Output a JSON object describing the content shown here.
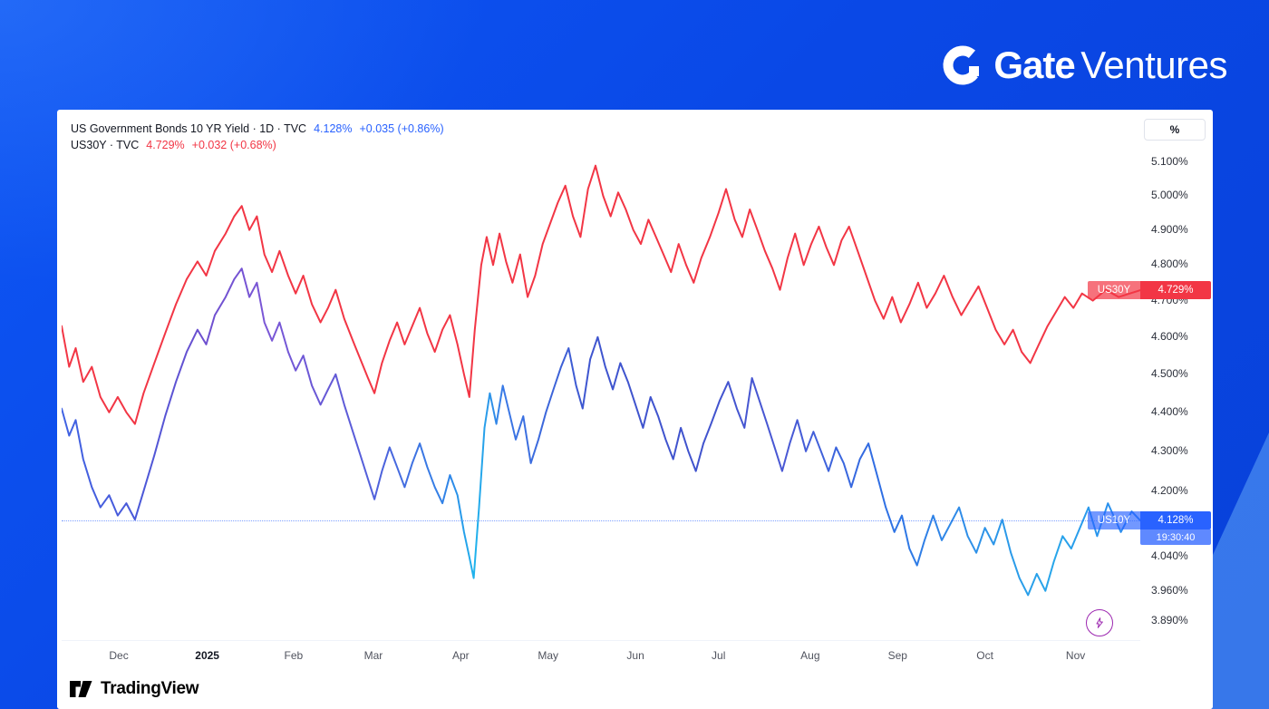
{
  "branding": {
    "bold": "Gate",
    "light": "Ventures"
  },
  "chart": {
    "legend": [
      {
        "title": "US Government Bonds 10 YR Yield · 1D · TVC",
        "value": "4.128%",
        "change": "+0.035 (+0.86%)",
        "color": "#2962ff"
      },
      {
        "title": "US30Y · TVC",
        "value": "4.729%",
        "change": "+0.032 (+0.68%)",
        "color": "#f23645"
      }
    ],
    "price_axis": {
      "unit": "%"
    }
  },
  "badges": {
    "us30y": {
      "name": "US30Y",
      "value": "4.729%",
      "v": 4.729,
      "color": "#f23645"
    },
    "us10y": {
      "name": "US10Y",
      "value": "4.128%",
      "countdown": "19:30:40",
      "v": 4.128,
      "color": "#2962ff"
    }
  },
  "attribution": {
    "text": "TradingView"
  },
  "chart_data": {
    "type": "line",
    "title": "US Government Bonds 10 YR Yield (US10Y) vs US30Y, 1D, TVC",
    "grid": false,
    "legend_position": "top-left",
    "last_price_line": 4.128,
    "x_axis": {
      "labels": [
        "Dec",
        "2025",
        "Feb",
        "Mar",
        "Apr",
        "May",
        "Jun",
        "Jul",
        "Aug",
        "Sep",
        "Oct",
        "Nov"
      ],
      "fracs": [
        0.053,
        0.135,
        0.215,
        0.289,
        0.37,
        0.451,
        0.532,
        0.609,
        0.694,
        0.775,
        0.856,
        0.94
      ]
    },
    "y_axis": {
      "scale": "log",
      "unit": "%",
      "tick_labels": [
        "5.100%",
        "5.000%",
        "4.900%",
        "4.800%",
        "4.700%",
        "4.600%",
        "4.500%",
        "4.400%",
        "4.300%",
        "4.200%",
        "4.040%",
        "3.960%",
        "3.890%"
      ]
    },
    "series": [
      {
        "name": "US30Y",
        "color": "#f23645",
        "last_value": 4.729,
        "points": [
          [
            0.0,
            4.63
          ],
          [
            0.007,
            4.52
          ],
          [
            0.013,
            4.57
          ],
          [
            0.02,
            4.48
          ],
          [
            0.028,
            4.52
          ],
          [
            0.036,
            4.44
          ],
          [
            0.044,
            4.4
          ],
          [
            0.052,
            4.44
          ],
          [
            0.06,
            4.4
          ],
          [
            0.068,
            4.37
          ],
          [
            0.076,
            4.45
          ],
          [
            0.086,
            4.53
          ],
          [
            0.096,
            4.61
          ],
          [
            0.106,
            4.69
          ],
          [
            0.116,
            4.76
          ],
          [
            0.126,
            4.81
          ],
          [
            0.134,
            4.77
          ],
          [
            0.142,
            4.84
          ],
          [
            0.152,
            4.89
          ],
          [
            0.16,
            4.94
          ],
          [
            0.167,
            4.97
          ],
          [
            0.174,
            4.9
          ],
          [
            0.181,
            4.94
          ],
          [
            0.188,
            4.83
          ],
          [
            0.195,
            4.78
          ],
          [
            0.202,
            4.84
          ],
          [
            0.21,
            4.77
          ],
          [
            0.217,
            4.72
          ],
          [
            0.224,
            4.77
          ],
          [
            0.232,
            4.69
          ],
          [
            0.24,
            4.64
          ],
          [
            0.247,
            4.68
          ],
          [
            0.254,
            4.73
          ],
          [
            0.262,
            4.65
          ],
          [
            0.27,
            4.59
          ],
          [
            0.277,
            4.54
          ],
          [
            0.284,
            4.49
          ],
          [
            0.29,
            4.45
          ],
          [
            0.297,
            4.53
          ],
          [
            0.304,
            4.59
          ],
          [
            0.311,
            4.64
          ],
          [
            0.318,
            4.58
          ],
          [
            0.325,
            4.63
          ],
          [
            0.332,
            4.68
          ],
          [
            0.339,
            4.61
          ],
          [
            0.346,
            4.56
          ],
          [
            0.353,
            4.62
          ],
          [
            0.36,
            4.66
          ],
          [
            0.367,
            4.58
          ],
          [
            0.373,
            4.5
          ],
          [
            0.378,
            4.44
          ],
          [
            0.383,
            4.62
          ],
          [
            0.389,
            4.8
          ],
          [
            0.394,
            4.88
          ],
          [
            0.4,
            4.8
          ],
          [
            0.406,
            4.89
          ],
          [
            0.412,
            4.81
          ],
          [
            0.418,
            4.75
          ],
          [
            0.425,
            4.83
          ],
          [
            0.432,
            4.71
          ],
          [
            0.439,
            4.77
          ],
          [
            0.446,
            4.86
          ],
          [
            0.453,
            4.92
          ],
          [
            0.46,
            4.98
          ],
          [
            0.467,
            5.03
          ],
          [
            0.474,
            4.94
          ],
          [
            0.481,
            4.88
          ],
          [
            0.488,
            5.02
          ],
          [
            0.495,
            5.09
          ],
          [
            0.502,
            5.0
          ],
          [
            0.509,
            4.94
          ],
          [
            0.516,
            5.01
          ],
          [
            0.523,
            4.96
          ],
          [
            0.53,
            4.9
          ],
          [
            0.537,
            4.86
          ],
          [
            0.544,
            4.93
          ],
          [
            0.551,
            4.88
          ],
          [
            0.558,
            4.83
          ],
          [
            0.565,
            4.78
          ],
          [
            0.572,
            4.86
          ],
          [
            0.579,
            4.8
          ],
          [
            0.586,
            4.75
          ],
          [
            0.593,
            4.82
          ],
          [
            0.601,
            4.88
          ],
          [
            0.609,
            4.95
          ],
          [
            0.616,
            5.02
          ],
          [
            0.624,
            4.93
          ],
          [
            0.631,
            4.88
          ],
          [
            0.638,
            4.96
          ],
          [
            0.645,
            4.9
          ],
          [
            0.652,
            4.84
          ],
          [
            0.659,
            4.79
          ],
          [
            0.666,
            4.73
          ],
          [
            0.673,
            4.82
          ],
          [
            0.68,
            4.89
          ],
          [
            0.688,
            4.8
          ],
          [
            0.695,
            4.86
          ],
          [
            0.702,
            4.91
          ],
          [
            0.709,
            4.85
          ],
          [
            0.716,
            4.8
          ],
          [
            0.723,
            4.87
          ],
          [
            0.73,
            4.91
          ],
          [
            0.738,
            4.84
          ],
          [
            0.746,
            4.77
          ],
          [
            0.754,
            4.7
          ],
          [
            0.762,
            4.65
          ],
          [
            0.77,
            4.71
          ],
          [
            0.778,
            4.64
          ],
          [
            0.786,
            4.69
          ],
          [
            0.794,
            4.75
          ],
          [
            0.802,
            4.68
          ],
          [
            0.81,
            4.72
          ],
          [
            0.818,
            4.77
          ],
          [
            0.826,
            4.71
          ],
          [
            0.834,
            4.66
          ],
          [
            0.842,
            4.7
          ],
          [
            0.85,
            4.74
          ],
          [
            0.858,
            4.68
          ],
          [
            0.866,
            4.62
          ],
          [
            0.874,
            4.58
          ],
          [
            0.882,
            4.62
          ],
          [
            0.89,
            4.56
          ],
          [
            0.898,
            4.53
          ],
          [
            0.906,
            4.58
          ],
          [
            0.914,
            4.63
          ],
          [
            0.922,
            4.67
          ],
          [
            0.93,
            4.71
          ],
          [
            0.938,
            4.68
          ],
          [
            0.946,
            4.72
          ],
          [
            0.956,
            4.7
          ],
          [
            0.968,
            4.73
          ],
          [
            0.98,
            4.71
          ],
          [
            1.0,
            4.729
          ]
        ]
      },
      {
        "name": "US10Y",
        "color": "gradient-blue",
        "last_value": 4.128,
        "points": [
          [
            0.0,
            4.41
          ],
          [
            0.007,
            4.34
          ],
          [
            0.013,
            4.38
          ],
          [
            0.02,
            4.28
          ],
          [
            0.028,
            4.21
          ],
          [
            0.036,
            4.16
          ],
          [
            0.044,
            4.19
          ],
          [
            0.052,
            4.14
          ],
          [
            0.06,
            4.17
          ],
          [
            0.068,
            4.13
          ],
          [
            0.076,
            4.2
          ],
          [
            0.086,
            4.29
          ],
          [
            0.096,
            4.39
          ],
          [
            0.106,
            4.48
          ],
          [
            0.116,
            4.56
          ],
          [
            0.126,
            4.62
          ],
          [
            0.134,
            4.58
          ],
          [
            0.142,
            4.66
          ],
          [
            0.152,
            4.71
          ],
          [
            0.16,
            4.76
          ],
          [
            0.167,
            4.79
          ],
          [
            0.174,
            4.71
          ],
          [
            0.181,
            4.75
          ],
          [
            0.188,
            4.64
          ],
          [
            0.195,
            4.59
          ],
          [
            0.202,
            4.64
          ],
          [
            0.21,
            4.56
          ],
          [
            0.217,
            4.51
          ],
          [
            0.224,
            4.55
          ],
          [
            0.232,
            4.47
          ],
          [
            0.24,
            4.42
          ],
          [
            0.247,
            4.46
          ],
          [
            0.254,
            4.5
          ],
          [
            0.262,
            4.42
          ],
          [
            0.27,
            4.35
          ],
          [
            0.277,
            4.29
          ],
          [
            0.284,
            4.23
          ],
          [
            0.29,
            4.18
          ],
          [
            0.297,
            4.25
          ],
          [
            0.304,
            4.31
          ],
          [
            0.311,
            4.26
          ],
          [
            0.318,
            4.21
          ],
          [
            0.325,
            4.27
          ],
          [
            0.332,
            4.32
          ],
          [
            0.339,
            4.26
          ],
          [
            0.346,
            4.21
          ],
          [
            0.353,
            4.17
          ],
          [
            0.36,
            4.24
          ],
          [
            0.367,
            4.19
          ],
          [
            0.373,
            4.1
          ],
          [
            0.378,
            4.04
          ],
          [
            0.382,
            3.99
          ],
          [
            0.387,
            4.16
          ],
          [
            0.392,
            4.36
          ],
          [
            0.397,
            4.45
          ],
          [
            0.403,
            4.37
          ],
          [
            0.409,
            4.47
          ],
          [
            0.415,
            4.4
          ],
          [
            0.421,
            4.33
          ],
          [
            0.428,
            4.39
          ],
          [
            0.435,
            4.27
          ],
          [
            0.442,
            4.33
          ],
          [
            0.449,
            4.4
          ],
          [
            0.456,
            4.46
          ],
          [
            0.463,
            4.52
          ],
          [
            0.47,
            4.57
          ],
          [
            0.477,
            4.47
          ],
          [
            0.483,
            4.41
          ],
          [
            0.49,
            4.54
          ],
          [
            0.497,
            4.6
          ],
          [
            0.504,
            4.52
          ],
          [
            0.511,
            4.46
          ],
          [
            0.518,
            4.53
          ],
          [
            0.525,
            4.48
          ],
          [
            0.532,
            4.42
          ],
          [
            0.539,
            4.36
          ],
          [
            0.546,
            4.44
          ],
          [
            0.553,
            4.39
          ],
          [
            0.56,
            4.33
          ],
          [
            0.567,
            4.28
          ],
          [
            0.574,
            4.36
          ],
          [
            0.581,
            4.3
          ],
          [
            0.588,
            4.25
          ],
          [
            0.595,
            4.32
          ],
          [
            0.602,
            4.37
          ],
          [
            0.61,
            4.43
          ],
          [
            0.618,
            4.48
          ],
          [
            0.626,
            4.41
          ],
          [
            0.633,
            4.36
          ],
          [
            0.64,
            4.49
          ],
          [
            0.647,
            4.43
          ],
          [
            0.654,
            4.37
          ],
          [
            0.661,
            4.31
          ],
          [
            0.668,
            4.25
          ],
          [
            0.675,
            4.32
          ],
          [
            0.682,
            4.38
          ],
          [
            0.69,
            4.3
          ],
          [
            0.697,
            4.35
          ],
          [
            0.704,
            4.3
          ],
          [
            0.711,
            4.25
          ],
          [
            0.718,
            4.31
          ],
          [
            0.725,
            4.27
          ],
          [
            0.732,
            4.21
          ],
          [
            0.74,
            4.28
          ],
          [
            0.748,
            4.32
          ],
          [
            0.756,
            4.24
          ],
          [
            0.764,
            4.16
          ],
          [
            0.772,
            4.1
          ],
          [
            0.779,
            4.14
          ],
          [
            0.786,
            4.06
          ],
          [
            0.793,
            4.02
          ],
          [
            0.8,
            4.08
          ],
          [
            0.808,
            4.14
          ],
          [
            0.816,
            4.08
          ],
          [
            0.824,
            4.12
          ],
          [
            0.832,
            4.16
          ],
          [
            0.84,
            4.09
          ],
          [
            0.848,
            4.05
          ],
          [
            0.856,
            4.11
          ],
          [
            0.864,
            4.07
          ],
          [
            0.872,
            4.13
          ],
          [
            0.88,
            4.05
          ],
          [
            0.888,
            3.99
          ],
          [
            0.896,
            3.95
          ],
          [
            0.904,
            4.0
          ],
          [
            0.912,
            3.96
          ],
          [
            0.92,
            4.03
          ],
          [
            0.928,
            4.09
          ],
          [
            0.936,
            4.06
          ],
          [
            0.944,
            4.11
          ],
          [
            0.952,
            4.16
          ],
          [
            0.96,
            4.09
          ],
          [
            0.97,
            4.17
          ],
          [
            0.982,
            4.1
          ],
          [
            0.992,
            4.15
          ],
          [
            1.0,
            4.128
          ]
        ]
      }
    ]
  }
}
